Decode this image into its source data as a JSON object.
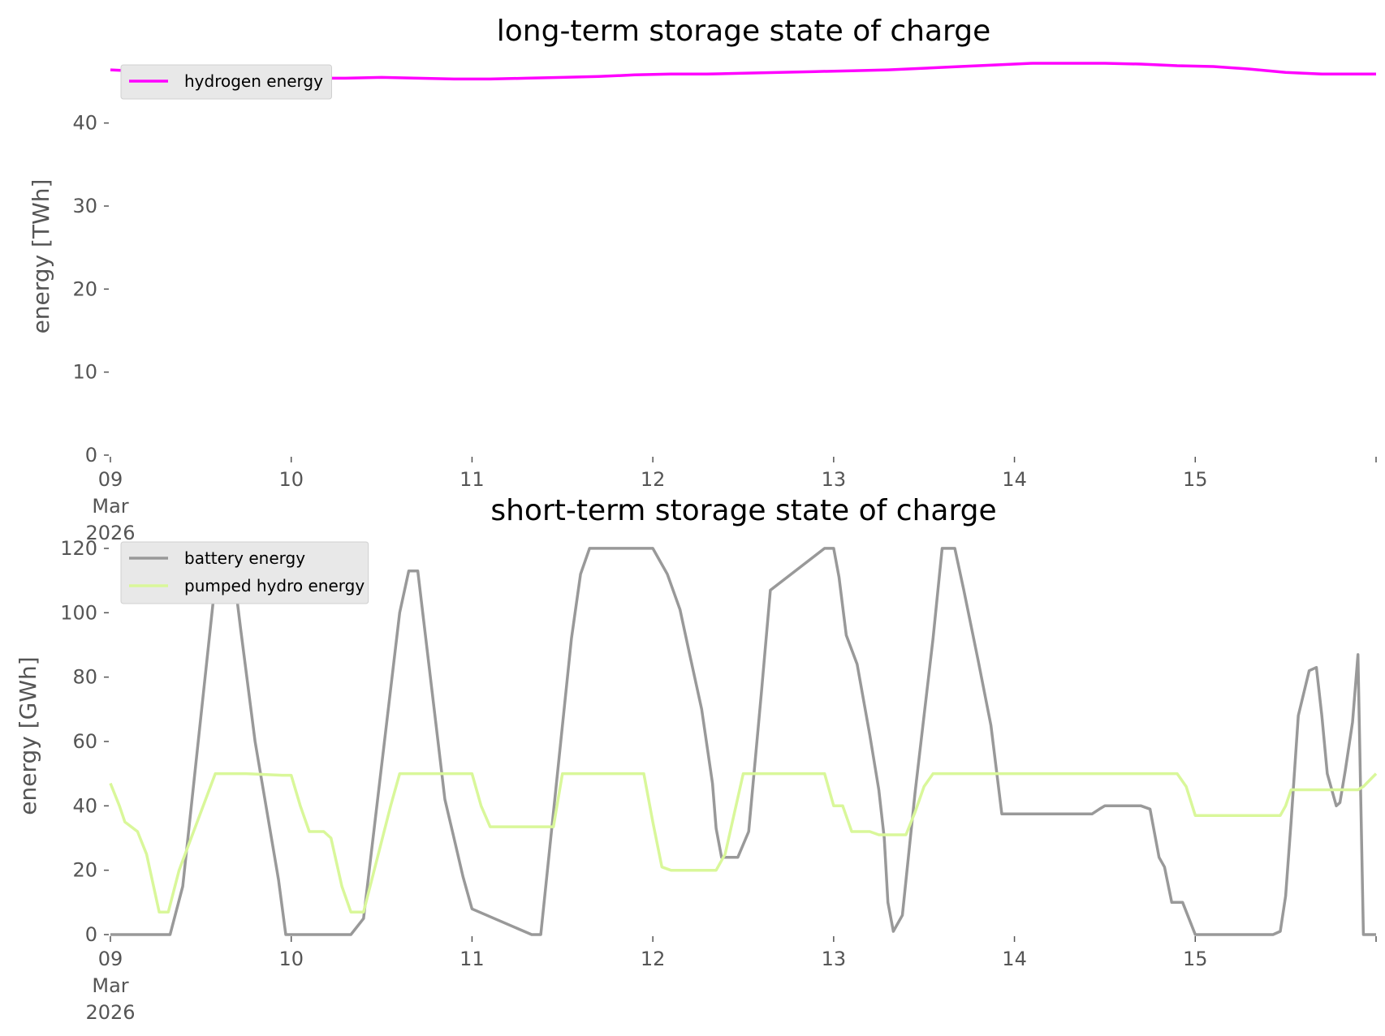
{
  "chart_data": [
    {
      "type": "line",
      "title": "long-term storage state of charge",
      "xlabel": "",
      "ylabel": "energy [TWh]",
      "ylim": [
        0,
        47
      ],
      "yticks": [
        0,
        10,
        20,
        30,
        40
      ],
      "xlim": [
        0,
        7
      ],
      "xtick_labels": [
        {
          "x": 0,
          "lines": [
            "09",
            "Mar",
            "2026"
          ]
        },
        {
          "x": 1,
          "lines": [
            "10"
          ]
        },
        {
          "x": 2,
          "lines": [
            "11"
          ]
        },
        {
          "x": 3,
          "lines": [
            "12"
          ]
        },
        {
          "x": 4,
          "lines": [
            "13"
          ]
        },
        {
          "x": 5,
          "lines": [
            "14"
          ]
        },
        {
          "x": 6,
          "lines": [
            "15"
          ]
        },
        {
          "x": 7,
          "lines": [
            ""
          ]
        }
      ],
      "grid": false,
      "legend_position": "top-left",
      "series": [
        {
          "name": "hydrogen energy",
          "color": "#ff00ff",
          "x": [
            0,
            0.3,
            0.5,
            0.7,
            0.9,
            1.1,
            1.3,
            1.5,
            1.7,
            1.9,
            2.1,
            2.3,
            2.5,
            2.7,
            2.9,
            3.1,
            3.3,
            3.5,
            3.7,
            3.9,
            4.1,
            4.3,
            4.5,
            4.7,
            4.9,
            5.1,
            5.3,
            5.5,
            5.7,
            5.9,
            6.1,
            6.3,
            6.5,
            6.7,
            6.9,
            7.0
          ],
          "y": [
            46.4,
            46.1,
            45.8,
            45.6,
            45.5,
            45.4,
            45.4,
            45.5,
            45.4,
            45.3,
            45.3,
            45.4,
            45.5,
            45.6,
            45.8,
            45.9,
            45.9,
            46.0,
            46.1,
            46.2,
            46.3,
            46.4,
            46.6,
            46.8,
            47.0,
            47.2,
            47.2,
            47.2,
            47.1,
            46.9,
            46.8,
            46.5,
            46.1,
            45.9,
            45.9,
            45.9
          ]
        }
      ]
    },
    {
      "type": "line",
      "title": "short-term storage state of charge",
      "xlabel": "",
      "ylabel": "energy [GWh]",
      "ylim": [
        0,
        122
      ],
      "yticks": [
        0,
        20,
        40,
        60,
        80,
        100,
        120
      ],
      "xlim": [
        0,
        7
      ],
      "xtick_labels": [
        {
          "x": 0,
          "lines": [
            "09",
            "Mar",
            "2026"
          ]
        },
        {
          "x": 1,
          "lines": [
            "10"
          ]
        },
        {
          "x": 2,
          "lines": [
            "11"
          ]
        },
        {
          "x": 3,
          "lines": [
            "12"
          ]
        },
        {
          "x": 4,
          "lines": [
            "13"
          ]
        },
        {
          "x": 5,
          "lines": [
            "14"
          ]
        },
        {
          "x": 6,
          "lines": [
            "15"
          ]
        },
        {
          "x": 7,
          "lines": [
            ""
          ]
        }
      ],
      "grid": false,
      "legend_position": "top-left",
      "series": [
        {
          "name": "battery energy",
          "color": "#999999",
          "x": [
            0,
            0.33,
            0.4,
            0.6,
            0.67,
            0.72,
            0.8,
            0.93,
            0.97,
            1.33,
            1.4,
            1.6,
            1.65,
            1.7,
            1.85,
            1.9,
            1.95,
            2.0,
            2.33,
            2.38,
            2.55,
            2.6,
            2.65,
            2.9,
            3.0,
            3.08,
            3.15,
            3.2,
            3.27,
            3.33,
            3.35,
            3.38,
            3.42,
            3.47,
            3.53,
            3.6,
            3.65,
            3.95,
            4.0,
            4.03,
            4.07,
            4.13,
            4.2,
            4.25,
            4.28,
            4.3,
            4.33,
            4.38,
            4.45,
            4.55,
            4.6,
            4.67,
            4.72,
            4.8,
            4.87,
            4.93,
            5.0,
            5.43,
            5.47,
            5.5,
            5.67,
            5.7,
            5.75,
            5.8,
            5.83,
            5.87,
            5.93,
            6.0,
            6.43,
            6.47,
            6.5,
            6.53,
            6.57,
            6.63,
            6.67,
            6.7,
            6.73,
            6.78,
            6.8,
            6.83,
            6.87,
            6.9,
            6.93,
            7.0
          ],
          "y": [
            0,
            0,
            15,
            120,
            118,
            95,
            60,
            17,
            0,
            0,
            5,
            100,
            113,
            113,
            42,
            30,
            18,
            8,
            0,
            0,
            92,
            112,
            120,
            120,
            120,
            112,
            101,
            88,
            70,
            47,
            33,
            24,
            24,
            24,
            32,
            75,
            107,
            120,
            120,
            111,
            93,
            84,
            62,
            45,
            30,
            10,
            1,
            6,
            44,
            92,
            120,
            120,
            107,
            85,
            65,
            37.5,
            37.5,
            37.5,
            39,
            40,
            40,
            40,
            39,
            24,
            21,
            10,
            10,
            0,
            0,
            1,
            12,
            35,
            68,
            82,
            83,
            68,
            50,
            40,
            41,
            51,
            66,
            87,
            0,
            0
          ],
          "_note": ""
        },
        {
          "name": "pumped hydro energy",
          "color": "#d9f79a",
          "x": [
            0,
            0.05,
            0.08,
            0.15,
            0.2,
            0.27,
            0.32,
            0.38,
            0.58,
            0.75,
            0.95,
            1.0,
            1.05,
            1.1,
            1.15,
            1.18,
            1.22,
            1.28,
            1.33,
            1.4,
            1.55,
            1.6,
            1.65,
            1.95,
            2.0,
            2.05,
            2.1,
            2.35,
            2.4,
            2.45,
            2.5,
            2.9,
            2.95,
            3.0,
            3.05,
            3.1,
            3.15,
            3.3,
            3.35,
            3.4,
            3.5,
            3.6,
            3.95,
            4.0,
            4.05,
            4.1,
            4.15,
            4.2,
            4.25,
            4.3,
            4.4,
            4.45,
            4.5,
            4.55,
            5.0,
            5.9,
            5.95,
            6.0,
            6.4,
            6.43,
            6.47,
            6.5,
            6.53,
            6.57,
            6.63,
            6.67,
            6.7,
            6.73,
            6.78,
            6.8,
            6.83,
            6.87,
            6.9,
            6.93,
            7.0
          ],
          "y": [
            47,
            40,
            35,
            32,
            25,
            7,
            7,
            20,
            50,
            50,
            49.5,
            49.5,
            40,
            32,
            32,
            32,
            30,
            15,
            7,
            7,
            40,
            50,
            50,
            50,
            50,
            40,
            33.5,
            33.5,
            33.5,
            33.5,
            50,
            50,
            50,
            35,
            21,
            20,
            20,
            20,
            20,
            25,
            50,
            50,
            50,
            40,
            40,
            32,
            32,
            32,
            31,
            31,
            31,
            38,
            46,
            50,
            50,
            50,
            46,
            37,
            37,
            37,
            37,
            40,
            45,
            45,
            45,
            45,
            45,
            45,
            45,
            45,
            45,
            45,
            45,
            46,
            50
          ]
        }
      ]
    }
  ]
}
